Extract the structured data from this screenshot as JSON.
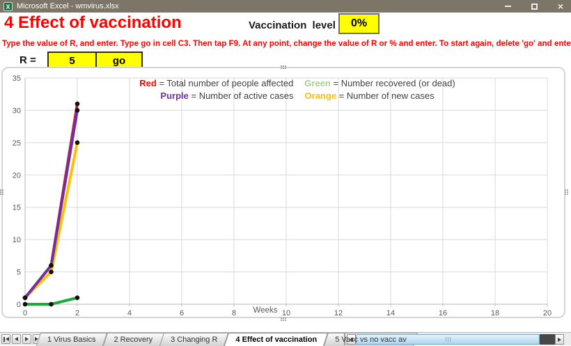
{
  "window": {
    "title": "Microsoft Excel - wmvirus.xlsx"
  },
  "header": {
    "page_title": "4 Effect of vaccination",
    "vaccination_label": "Vaccination level",
    "vaccination_value": "0%",
    "instructions": "Type the value of R, and enter. Type go in cell C3. Then tap F9. At any point, change the value of R or % and enter. To start again, delete 'go' and enter.",
    "r_label": "R =",
    "r_value": "5",
    "go_value": "go"
  },
  "colors": {
    "heading_red": "#ff0000",
    "input_yellow": "#ffff00",
    "titlebar": "#7d7568"
  },
  "chart_data": {
    "type": "line",
    "x": [
      0,
      1,
      2
    ],
    "series": [
      {
        "name": "Total number of people affected",
        "color": "#cf2037",
        "values": [
          1,
          6,
          31
        ]
      },
      {
        "name": "Number of new cases",
        "color": "#ffc000",
        "values": [
          1,
          5,
          25
        ]
      },
      {
        "name": "Number of active cases",
        "color": "#7030a0",
        "values": [
          1,
          6,
          30
        ]
      },
      {
        "name": "Number recovered (or dead)",
        "color": "#1fa83c",
        "values": [
          0,
          0,
          1
        ]
      }
    ],
    "marker_color": "#111111",
    "xlabel": "Weeks",
    "ylabel": "",
    "xlim": [
      0,
      20
    ],
    "ylim": [
      0,
      35
    ],
    "xticks": [
      0,
      2,
      4,
      6,
      8,
      10,
      12,
      14,
      16,
      18,
      20
    ],
    "yticks": [
      0,
      5,
      10,
      15,
      20,
      25,
      30,
      35
    ],
    "grid": true,
    "grid_color": "#d9d9d9",
    "axis_color": "#b7b7b7",
    "tick_label_color": "#595959",
    "legend_position": "top-center",
    "legend": {
      "entries": [
        {
          "label": "Red",
          "color": "#ff0000",
          "desc": "Total number of people affected"
        },
        {
          "label": "Green",
          "color": "#a9d18e",
          "desc": "Number recovered (or dead)"
        },
        {
          "label": "Purple",
          "color": "#7030a0",
          "desc": "Number of active cases"
        },
        {
          "label": "Orange",
          "color": "#ffc000",
          "desc": "Number of new cases"
        }
      ],
      "rows": [
        [
          0,
          1
        ],
        [
          2,
          3
        ]
      ]
    }
  },
  "sheet_tabs": [
    {
      "label": "1 Virus Basics",
      "active": false
    },
    {
      "label": "2 Recovery",
      "active": false
    },
    {
      "label": "3 Changing R",
      "active": false
    },
    {
      "label": "4 Effect of vaccination",
      "active": true
    },
    {
      "label": "5 Vacc vs no vacc av",
      "active": false
    }
  ]
}
